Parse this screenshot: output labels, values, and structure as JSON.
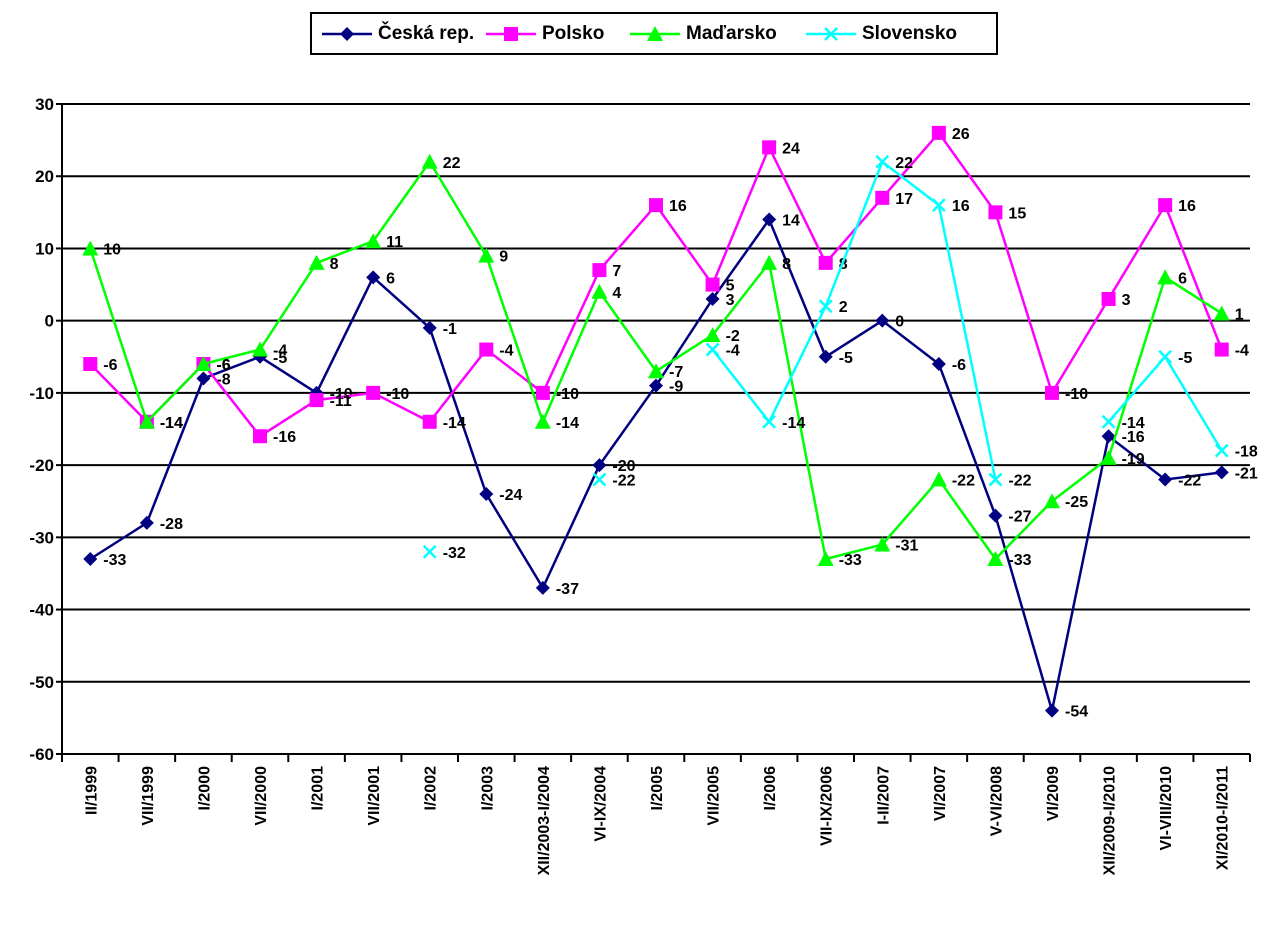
{
  "chart_data": {
    "type": "line",
    "title": "",
    "xlabel": "",
    "ylabel": "",
    "ylim": [
      -60,
      30
    ],
    "yticks": [
      30,
      20,
      10,
      0,
      -10,
      -20,
      -30,
      -40,
      -50,
      -60
    ],
    "categories": [
      "II/1999",
      "VII/1999",
      "I/2000",
      "VII/2000",
      "I/2001",
      "VII/2001",
      "I/2002",
      "I/2003",
      "XII/2003-I/2004",
      "VI-IX/2004",
      "I/2005",
      "VII/2005",
      "I/2006",
      "VII-IX/2006",
      "I-II/2007",
      "VI/2007",
      "V-VI/2008",
      "VI/2009",
      "XII/2009-I/2010",
      "VI-VIII/2010",
      "XI/2010-I/2011"
    ],
    "grid": true,
    "legend_position": "top",
    "series": [
      {
        "name": "Česká rep.",
        "color": "#000080",
        "marker": "diamond",
        "values": [
          -33,
          -28,
          -8,
          -5,
          -10,
          6,
          -1,
          -24,
          -37,
          -20,
          -9,
          3,
          14,
          -5,
          0,
          -6,
          -27,
          -54,
          -16,
          -22,
          -21
        ]
      },
      {
        "name": "Polsko",
        "color": "#FF00FF",
        "marker": "square",
        "values": [
          -6,
          -14,
          -6,
          -16,
          -11,
          -10,
          -14,
          -4,
          -10,
          7,
          16,
          5,
          24,
          8,
          17,
          26,
          15,
          -10,
          3,
          16,
          -4
        ]
      },
      {
        "name": "Maďarsko",
        "color": "#00FF00",
        "marker": "triangle",
        "values": [
          10,
          -14,
          -6,
          -4,
          8,
          11,
          22,
          9,
          -14,
          4,
          -7,
          -2,
          8,
          -33,
          -31,
          -22,
          -33,
          -25,
          -19,
          6,
          1
        ]
      },
      {
        "name": "Slovensko",
        "color": "#00FFFF",
        "marker": "x",
        "values": [
          null,
          null,
          null,
          null,
          null,
          null,
          -32,
          null,
          null,
          -22,
          null,
          -4,
          -14,
          2,
          22,
          16,
          -22,
          null,
          -14,
          -5,
          -18
        ]
      }
    ]
  }
}
